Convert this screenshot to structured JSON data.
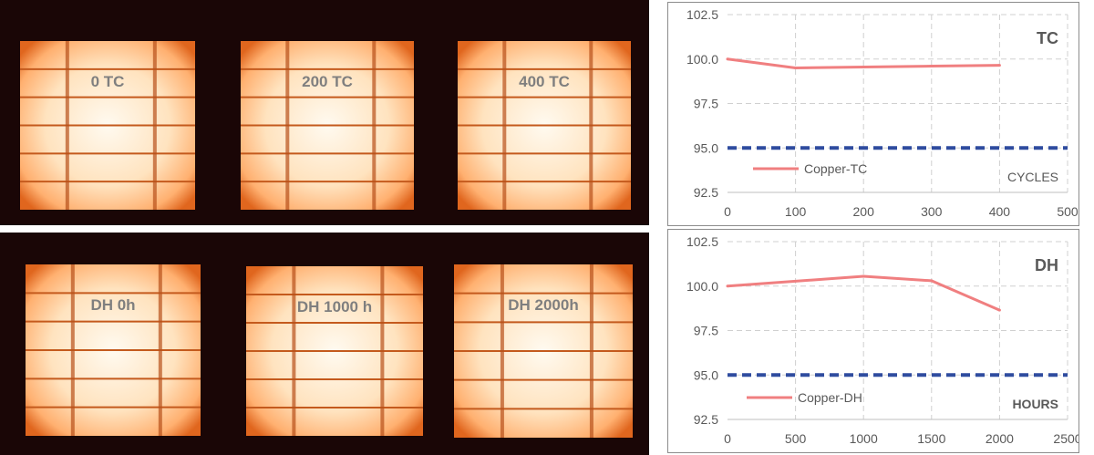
{
  "images": {
    "captions": [
      "0 TC",
      "200  TC",
      "400 TC",
      "DH 0h",
      "DH  1000 h",
      "DH 2000h"
    ]
  },
  "colors": {
    "series": "#f07f80",
    "limit": "#2f4c9f",
    "grid": "#d0d0d0",
    "axis_text": "#595959",
    "cell_glow": "#ffc78a",
    "cell_hot": "#fff7e6",
    "module_bg": "#1a0606"
  },
  "chart_data": [
    {
      "type": "line",
      "title": "TC",
      "xlabel": "CYCLES",
      "ylabel": "",
      "xlim": [
        0,
        500
      ],
      "ylim": [
        92.5,
        102.5
      ],
      "x_ticks": [
        "0",
        "100",
        "200",
        "300",
        "400",
        "500"
      ],
      "y_ticks": [
        "92.5",
        "95.0",
        "97.5",
        "100.0",
        "102.5"
      ],
      "grid": true,
      "legend": "bottom-left",
      "series": [
        {
          "name": "Copper-TC",
          "x": [
            0,
            100,
            200,
            300,
            400
          ],
          "y": [
            100.0,
            99.5,
            99.55,
            99.6,
            99.65
          ]
        }
      ],
      "reference_line": {
        "y": 95.0,
        "style": "dashed"
      }
    },
    {
      "type": "line",
      "title": "DH",
      "xlabel": "HOURS",
      "ylabel": "",
      "xlim": [
        0,
        2500
      ],
      "ylim": [
        92.5,
        102.5
      ],
      "x_ticks": [
        "0",
        "500",
        "1000",
        "1500",
        "2000",
        "2500"
      ],
      "y_ticks": [
        "92.5",
        "95.0",
        "97.5",
        "100.0",
        "102.5"
      ],
      "grid": true,
      "legend": "bottom-left",
      "series": [
        {
          "name": "Copper-DH",
          "x": [
            0,
            1000,
            1500,
            2000
          ],
          "y": [
            100.0,
            100.55,
            100.3,
            98.65
          ]
        }
      ],
      "reference_line": {
        "y": 95.0,
        "style": "dashed"
      }
    }
  ]
}
